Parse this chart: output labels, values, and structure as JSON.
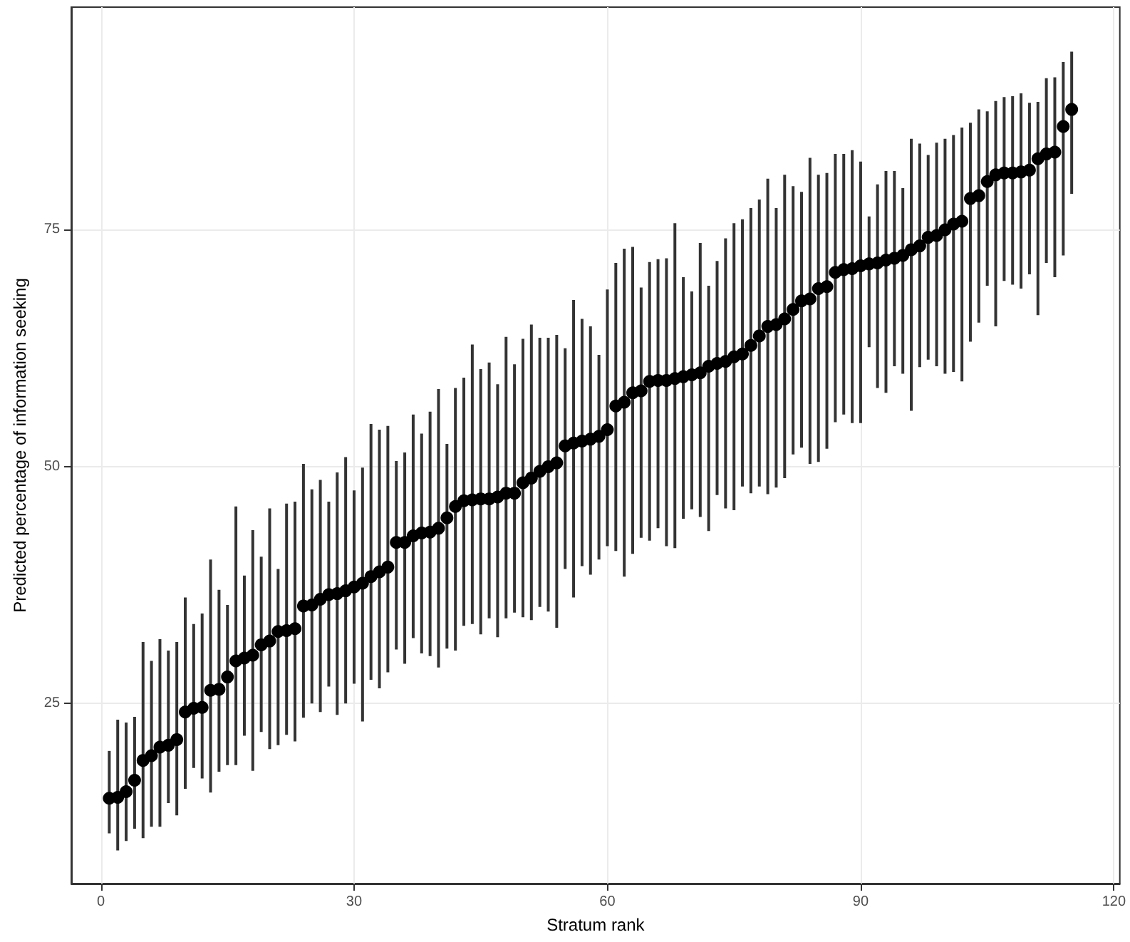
{
  "chart_data": {
    "type": "scatter",
    "xlabel": "Stratum rank",
    "ylabel": "Predicted percentage of information seeking",
    "x": [
      1,
      2,
      3,
      4,
      5,
      6,
      7,
      8,
      9,
      10,
      11,
      12,
      13,
      14,
      15,
      16,
      17,
      18,
      19,
      20,
      21,
      22,
      23,
      24,
      25,
      26,
      27,
      28,
      29,
      30,
      31,
      32,
      33,
      34,
      35,
      36,
      37,
      38,
      39,
      40,
      41,
      42,
      43,
      44,
      45,
      46,
      47,
      48,
      49,
      50,
      51,
      52,
      53,
      54,
      55,
      56,
      57,
      58,
      59,
      60,
      61,
      62,
      63,
      64,
      65,
      66,
      67,
      68,
      69,
      70,
      71,
      72,
      73,
      74,
      75,
      76,
      77,
      78,
      79,
      80,
      81,
      82,
      83,
      84,
      85,
      86,
      87,
      88,
      89,
      90,
      91,
      92,
      93,
      94,
      95,
      96,
      97,
      98,
      99,
      100,
      101,
      102,
      103,
      104,
      105,
      106,
      107,
      108,
      109,
      110,
      111,
      112,
      113,
      114,
      115
    ],
    "values": [
      15.0,
      15.1,
      15.7,
      16.9,
      19.0,
      19.5,
      20.4,
      20.6,
      21.2,
      24.1,
      24.5,
      24.6,
      26.4,
      26.5,
      27.8,
      29.5,
      29.8,
      30.1,
      31.2,
      31.6,
      32.6,
      32.7,
      32.9,
      35.3,
      35.4,
      36.0,
      36.5,
      36.6,
      36.9,
      37.3,
      37.7,
      38.4,
      38.9,
      39.4,
      42.0,
      42.0,
      42.7,
      43.0,
      43.1,
      43.5,
      44.6,
      45.8,
      46.4,
      46.5,
      46.6,
      46.6,
      46.8,
      47.2,
      47.2,
      48.3,
      48.8,
      49.5,
      50.0,
      50.4,
      52.2,
      52.5,
      52.7,
      52.9,
      53.2,
      53.9,
      56.4,
      56.8,
      57.8,
      58.0,
      59.0,
      59.1,
      59.1,
      59.3,
      59.5,
      59.7,
      59.9,
      60.6,
      60.9,
      61.1,
      61.6,
      61.9,
      62.8,
      63.8,
      64.8,
      65.0,
      65.6,
      66.6,
      67.5,
      67.7,
      68.8,
      69.0,
      70.5,
      70.8,
      70.9,
      71.2,
      71.4,
      71.5,
      71.8,
      72.0,
      72.3,
      72.9,
      73.3,
      74.2,
      74.4,
      75.0,
      75.6,
      75.9,
      78.3,
      78.6,
      80.1,
      80.8,
      81.0,
      81.0,
      81.1,
      81.3,
      82.5,
      83.0,
      83.2,
      85.9,
      87.7
    ],
    "errors": [
      [
        11.3,
        20.0
      ],
      [
        9.5,
        23.3
      ],
      [
        10.5,
        23.0
      ],
      [
        11.8,
        23.6
      ],
      [
        10.8,
        31.5
      ],
      [
        12.0,
        29.5
      ],
      [
        12.0,
        31.8
      ],
      [
        14.5,
        30.6
      ],
      [
        13.2,
        31.5
      ],
      [
        16.0,
        36.2
      ],
      [
        18.2,
        33.4
      ],
      [
        17.1,
        34.5
      ],
      [
        15.6,
        40.2
      ],
      [
        17.8,
        37.0
      ],
      [
        18.5,
        35.4
      ],
      [
        18.5,
        45.8
      ],
      [
        21.6,
        38.5
      ],
      [
        17.9,
        43.3
      ],
      [
        22.0,
        40.5
      ],
      [
        20.2,
        45.6
      ],
      [
        20.6,
        39.2
      ],
      [
        21.7,
        46.1
      ],
      [
        21.0,
        46.3
      ],
      [
        23.5,
        50.3
      ],
      [
        25.0,
        47.6
      ],
      [
        24.1,
        48.6
      ],
      [
        26.8,
        46.3
      ],
      [
        23.8,
        49.4
      ],
      [
        25.0,
        51.0
      ],
      [
        27.1,
        47.5
      ],
      [
        23.1,
        49.9
      ],
      [
        27.5,
        54.5
      ],
      [
        26.6,
        53.9
      ],
      [
        28.3,
        54.3
      ],
      [
        30.7,
        50.6
      ],
      [
        29.2,
        51.5
      ],
      [
        31.9,
        55.5
      ],
      [
        30.3,
        53.5
      ],
      [
        30.0,
        55.8
      ],
      [
        28.8,
        58.2
      ],
      [
        30.8,
        52.4
      ],
      [
        30.6,
        58.3
      ],
      [
        33.2,
        59.4
      ],
      [
        33.4,
        62.9
      ],
      [
        32.3,
        60.3
      ],
      [
        34.0,
        61.0
      ],
      [
        32.0,
        58.7
      ],
      [
        34.0,
        63.7
      ],
      [
        34.6,
        60.8
      ],
      [
        34.1,
        63.5
      ],
      [
        33.8,
        65.0
      ],
      [
        35.2,
        63.6
      ],
      [
        34.7,
        63.6
      ],
      [
        33.0,
        63.9
      ],
      [
        39.2,
        62.5
      ],
      [
        36.2,
        67.6
      ],
      [
        39.5,
        65.6
      ],
      [
        38.6,
        64.8
      ],
      [
        40.2,
        61.8
      ],
      [
        41.6,
        68.7
      ],
      [
        41.1,
        71.5
      ],
      [
        38.4,
        73.0
      ],
      [
        40.8,
        73.2
      ],
      [
        42.5,
        68.9
      ],
      [
        42.2,
        71.6
      ],
      [
        43.5,
        71.9
      ],
      [
        41.6,
        72.0
      ],
      [
        41.4,
        75.7
      ],
      [
        44.5,
        70.0
      ],
      [
        45.5,
        68.5
      ],
      [
        44.7,
        73.6
      ],
      [
        43.2,
        69.1
      ],
      [
        47.0,
        71.7
      ],
      [
        45.6,
        74.1
      ],
      [
        45.4,
        75.7
      ],
      [
        47.9,
        76.1
      ],
      [
        47.2,
        77.3
      ],
      [
        47.9,
        78.2
      ],
      [
        47.1,
        80.4
      ],
      [
        47.8,
        77.3
      ],
      [
        48.8,
        80.8
      ],
      [
        51.3,
        79.6
      ],
      [
        52.0,
        79.0
      ],
      [
        50.3,
        82.6
      ],
      [
        50.5,
        80.8
      ],
      [
        51.9,
        81.0
      ],
      [
        54.7,
        83.0
      ],
      [
        55.5,
        83.0
      ],
      [
        54.6,
        83.4
      ],
      [
        54.6,
        82.2
      ],
      [
        62.6,
        76.4
      ],
      [
        58.3,
        79.8
      ],
      [
        57.8,
        81.2
      ],
      [
        60.6,
        81.2
      ],
      [
        59.8,
        79.4
      ],
      [
        55.9,
        84.6
      ],
      [
        60.5,
        84.1
      ],
      [
        61.3,
        82.9
      ],
      [
        60.6,
        84.2
      ],
      [
        59.8,
        84.6
      ],
      [
        60.0,
        85.0
      ],
      [
        59.0,
        85.8
      ],
      [
        63.2,
        86.3
      ],
      [
        65.2,
        87.7
      ],
      [
        69.1,
        87.5
      ],
      [
        64.8,
        88.6
      ],
      [
        69.6,
        89.0
      ],
      [
        69.2,
        89.1
      ],
      [
        68.8,
        89.4
      ],
      [
        70.3,
        88.4
      ],
      [
        66.0,
        88.5
      ],
      [
        71.5,
        91.0
      ],
      [
        70.0,
        91.1
      ],
      [
        72.3,
        92.7
      ],
      [
        78.8,
        93.8
      ]
    ],
    "color": "#000000",
    "marker": "circle",
    "xlim": [
      -3.5,
      120.7
    ],
    "xticks": [
      0,
      30,
      60,
      90,
      120
    ],
    "ylim": [
      6,
      98.5
    ],
    "yticks": [
      25,
      50,
      75
    ],
    "grid": true
  }
}
